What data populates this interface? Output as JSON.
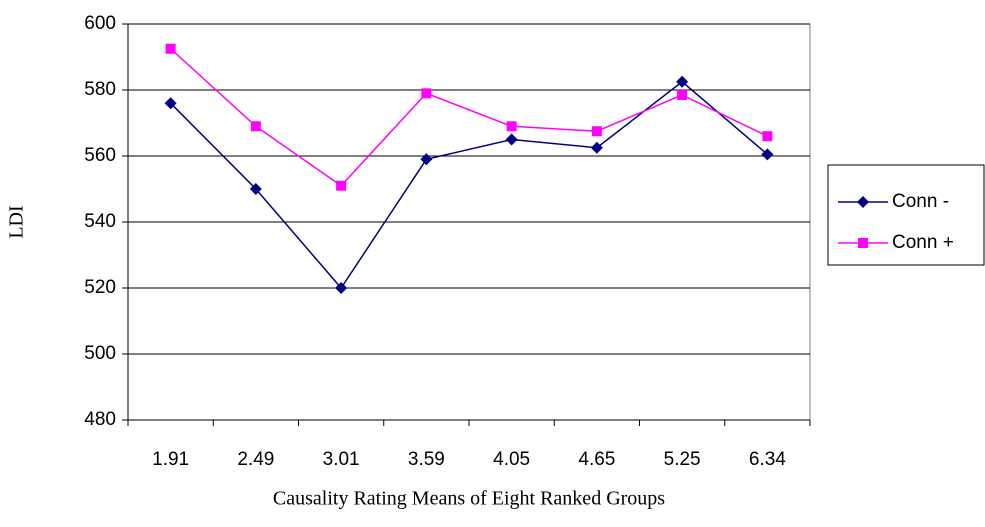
{
  "chart_data": {
    "type": "line",
    "x_label": "Causality Rating Means of Eight Ranked Groups",
    "y_label": "LDI",
    "categories": [
      "1.91",
      "2.49",
      "3.01",
      "3.59",
      "4.05",
      "4.65",
      "5.25",
      "6.34"
    ],
    "series": [
      {
        "name": "Conn -",
        "color": "#000080",
        "marker": "diamond",
        "values": [
          576,
          550,
          520,
          559,
          565,
          562.5,
          582.5,
          560.5
        ]
      },
      {
        "name": "Conn +",
        "color": "#ff00ff",
        "marker": "square",
        "values": [
          592.5,
          569,
          551,
          579,
          569,
          567.5,
          578.5,
          566
        ]
      }
    ],
    "ylim": [
      480,
      600
    ],
    "yticks": [
      480,
      500,
      520,
      540,
      560,
      580,
      600
    ],
    "grid": true,
    "legend": "right"
  }
}
